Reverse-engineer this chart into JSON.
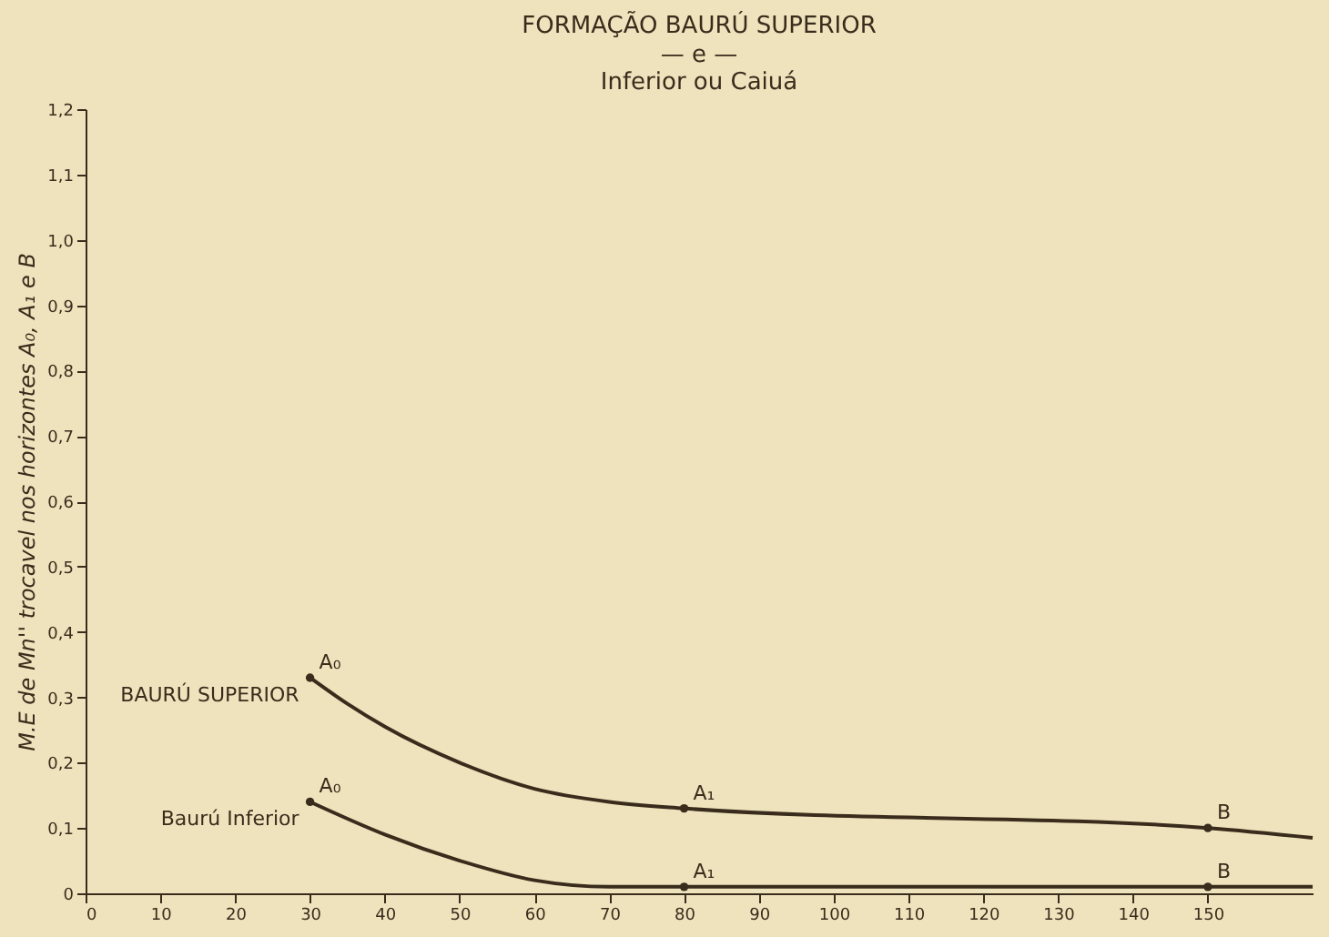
{
  "chart_data": {
    "type": "line",
    "title": "FORMAÇÃO BAURÚ SUPERIOR",
    "subtitle": "— e —\nInferior ou Caiuá",
    "ylabel": "M.E de Mn'' trocavel nos horizontes A₀, A₁ e B",
    "xlim": [
      0,
      164
    ],
    "xticks": [
      0,
      10,
      20,
      30,
      40,
      50,
      60,
      70,
      80,
      90,
      100,
      110,
      120,
      130,
      140,
      150
    ],
    "ylim": [
      0,
      1.2
    ],
    "yticks": [
      0,
      {
        "value": 0.1,
        "label": "0,1"
      },
      {
        "value": 0.2,
        "label": "0,2"
      },
      {
        "value": 0.3,
        "label": "0,3"
      },
      {
        "value": 0.4,
        "label": "0,4"
      },
      {
        "value": 0.5,
        "label": "0,5"
      },
      {
        "value": 0.6,
        "label": "0,6"
      },
      {
        "value": 0.7,
        "label": "0,7"
      },
      {
        "value": 0.8,
        "label": "0,8"
      },
      {
        "value": 0.9,
        "label": "0,9"
      },
      {
        "value": 1.0,
        "label": "1,0"
      },
      {
        "value": 1.1,
        "label": "1,1"
      },
      {
        "value": 1.2,
        "label": "1,2"
      }
    ],
    "grid": false,
    "legend": false,
    "line_style": "solid",
    "series": [
      {
        "name": "BAURÚ SUPERIOR",
        "type": "line",
        "color": "#3a2c1c",
        "x": [
          30,
          35,
          40,
          50,
          60,
          70,
          80,
          150,
          164
        ],
        "values": [
          0.33,
          0.29,
          0.255,
          0.2,
          0.16,
          0.14,
          0.13,
          0.1,
          0.085
        ]
      },
      {
        "name": "Baurú Inferior",
        "type": "line",
        "color": "#3a2c1c",
        "x": [
          30,
          40,
          50,
          60,
          70,
          80,
          150,
          164
        ],
        "values": [
          0.14,
          0.09,
          0.05,
          0.02,
          0.01,
          0.01,
          0.01,
          0.01
        ]
      },
      {
        "type": "scatter",
        "color": "#3a2c1c",
        "x": [
          30,
          80,
          150
        ],
        "values": [
          0.33,
          0.13,
          0.1
        ]
      },
      {
        "type": "scatter",
        "color": "#3a2c1c",
        "x": [
          30,
          80,
          150
        ],
        "values": [
          0.14,
          0.01,
          0.01
        ]
      }
    ],
    "annotations": [
      {
        "text": "A₀",
        "x": 30,
        "y": 0.33
      },
      {
        "text": "A₁",
        "x": 80,
        "y": 0.13
      },
      {
        "text": "B",
        "x": 150,
        "y": 0.1
      },
      {
        "text": "A₀",
        "x": 30,
        "y": 0.14
      },
      {
        "text": "A₁",
        "x": 80,
        "y": 0.01
      },
      {
        "text": "B",
        "x": 150,
        "y": 0.01
      }
    ]
  }
}
